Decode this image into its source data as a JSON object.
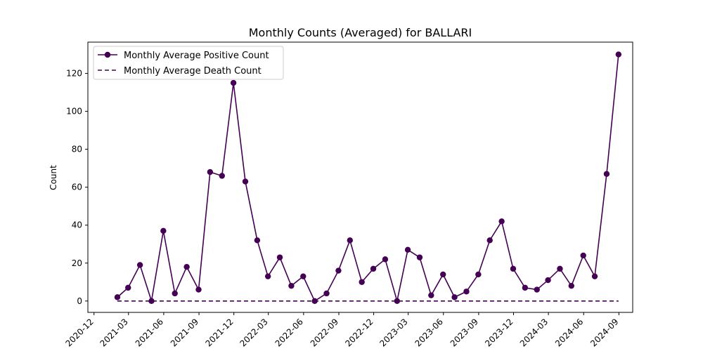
{
  "chart_data": {
    "type": "line",
    "title": "Monthly Counts (Averaged) for BALLARI",
    "xlabel": "",
    "ylabel": "Count",
    "ylim": [
      -6,
      136.5
    ],
    "yticks": [
      0,
      20,
      40,
      60,
      80,
      100,
      120
    ],
    "xlim": [
      "2020-11-15",
      "2024-10-07"
    ],
    "xticks": [
      "2020-12",
      "2021-03",
      "2021-06",
      "2021-09",
      "2021-12",
      "2022-03",
      "2022-06",
      "2022-09",
      "2022-12",
      "2023-03",
      "2023-06",
      "2023-09",
      "2023-12",
      "2024-03",
      "2024-06",
      "2024-09"
    ],
    "x": [
      "2021-01-31",
      "2021-02-28",
      "2021-03-31",
      "2021-04-30",
      "2021-05-31",
      "2021-06-30",
      "2021-07-31",
      "2021-08-31",
      "2021-09-30",
      "2021-10-31",
      "2021-11-30",
      "2021-12-31",
      "2022-01-31",
      "2022-02-28",
      "2022-03-31",
      "2022-04-30",
      "2022-05-31",
      "2022-06-30",
      "2022-07-31",
      "2022-08-31",
      "2022-09-30",
      "2022-10-31",
      "2022-11-30",
      "2022-12-31",
      "2023-01-31",
      "2023-02-28",
      "2023-03-31",
      "2023-04-30",
      "2023-05-31",
      "2023-06-30",
      "2023-07-31",
      "2023-08-31",
      "2023-09-30",
      "2023-10-31",
      "2023-11-30",
      "2023-12-31",
      "2024-01-31",
      "2024-02-29",
      "2024-03-31",
      "2024-04-30",
      "2024-05-31",
      "2024-06-30",
      "2024-07-31",
      "2024-08-31"
    ],
    "series": [
      {
        "name": "Monthly Average Positive Count",
        "style": "solid-marker",
        "color": "#440154",
        "values": [
          2,
          7,
          19,
          0,
          37,
          4,
          18,
          6,
          68,
          66,
          115,
          63,
          32,
          13,
          23,
          8,
          13,
          0,
          4,
          16,
          32,
          10,
          17,
          22,
          0,
          27,
          23,
          3,
          14,
          2,
          5,
          14,
          32,
          42,
          17,
          7,
          6,
          11,
          17,
          8,
          24,
          13,
          67,
          130
        ]
      },
      {
        "name": "Monthly Average Death Count",
        "style": "dashed",
        "color": "#440154",
        "values": [
          0,
          0,
          0,
          0,
          0,
          0,
          0,
          0,
          0,
          0,
          0,
          0,
          0,
          0,
          0,
          0,
          0,
          0,
          0,
          0,
          0,
          0,
          0,
          0,
          0,
          0,
          0,
          0,
          0,
          0,
          0,
          0,
          0,
          0,
          0,
          0,
          0,
          0,
          0,
          0,
          0,
          0,
          0,
          0
        ]
      }
    ],
    "legend_position": "top-left",
    "grid": false
  }
}
